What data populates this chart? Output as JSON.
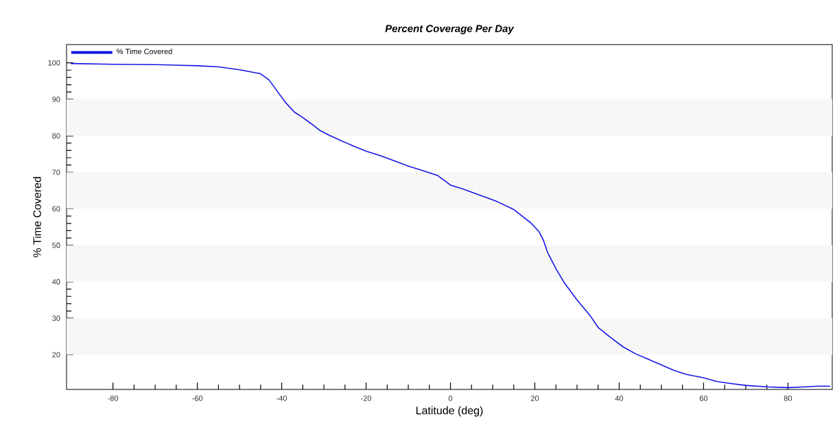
{
  "chart_data": {
    "type": "line",
    "title": "Percent Coverage Per Day",
    "xlabel": "Latitude (deg)",
    "ylabel": "% Time Covered",
    "x": [
      -90,
      -80,
      -70,
      -60,
      -55,
      -50,
      -45,
      -43,
      -41,
      -39,
      -37,
      -35,
      -33,
      -31,
      -29,
      -26,
      -23,
      -20,
      -17,
      -13,
      -10,
      -7,
      -3,
      0,
      3,
      7,
      11,
      15,
      17,
      19,
      21,
      22,
      23,
      25,
      27,
      30,
      33,
      35,
      38,
      41,
      44,
      47,
      50,
      53,
      56,
      60,
      63,
      66,
      70,
      75,
      80,
      84,
      87,
      90
    ],
    "series": [
      {
        "name": "% Time Covered",
        "color": "#1414e6",
        "values": [
          99.8,
          99.6,
          99.5,
          99.2,
          98.9,
          98.1,
          97.0,
          95.3,
          92.1,
          89.0,
          86.5,
          85.0,
          83.3,
          81.5,
          80.3,
          78.7,
          77.2,
          75.8,
          74.7,
          73.0,
          71.7,
          70.6,
          69.1,
          66.5,
          65.4,
          63.7,
          62.0,
          59.8,
          58.0,
          56.2,
          53.7,
          51.5,
          48.1,
          43.6,
          39.7,
          35.0,
          30.9,
          27.5,
          24.7,
          22.1,
          20.2,
          18.7,
          17.2,
          15.7,
          14.6,
          13.7,
          12.7,
          12.2,
          11.6,
          11.2,
          11.0,
          11.2,
          11.4,
          11.4
        ]
      }
    ],
    "xlim": [
      -91,
      90.5
    ],
    "ylim": [
      10.5,
      105
    ],
    "xticks": [
      -80,
      -60,
      -40,
      -20,
      0,
      20,
      40,
      60,
      80
    ],
    "yticks": [
      20,
      30,
      40,
      50,
      60,
      70,
      80,
      90,
      100
    ],
    "bands": [
      {
        "axis": "y",
        "from": 20,
        "to": 30,
        "color": "#f7f7f7"
      },
      {
        "axis": "y",
        "from": 40,
        "to": 50,
        "color": "#f7f7f7"
      },
      {
        "axis": "y",
        "from": 60,
        "to": 70,
        "color": "#f7f7f7"
      },
      {
        "axis": "y",
        "from": 80,
        "to": 90,
        "color": "#f7f7f7"
      }
    ],
    "grid": false,
    "legend": "top left",
    "marker": "none",
    "line_style": "solid"
  }
}
